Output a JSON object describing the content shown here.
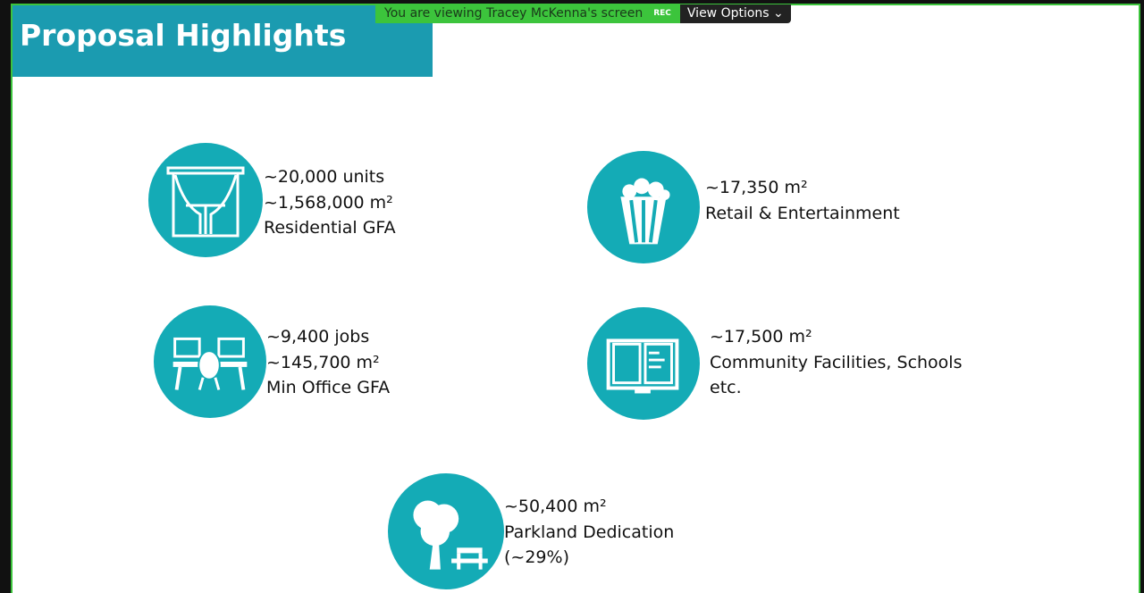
{
  "share_bar": {
    "message": "You are viewing Tracey McKenna's screen",
    "rec": "REC",
    "view_options": "View Options"
  },
  "slide": {
    "title": "Proposal Highlights",
    "items": [
      {
        "lines": [
          "~20,000 units",
          "~1,568,000 m²",
          "Residential GFA"
        ]
      },
      {
        "lines": [
          "~17,350 m²",
          "Retail & Entertainment"
        ]
      },
      {
        "lines": [
          "~9,400 jobs",
          "~145,700 m²",
          "Min Office GFA"
        ]
      },
      {
        "lines": [
          "~17,500 m²",
          "Community Facilities, Schools",
          "etc."
        ]
      },
      {
        "lines": [
          "~50,400 m²",
          "Parkland Dedication",
          "(~29%)"
        ]
      }
    ]
  }
}
